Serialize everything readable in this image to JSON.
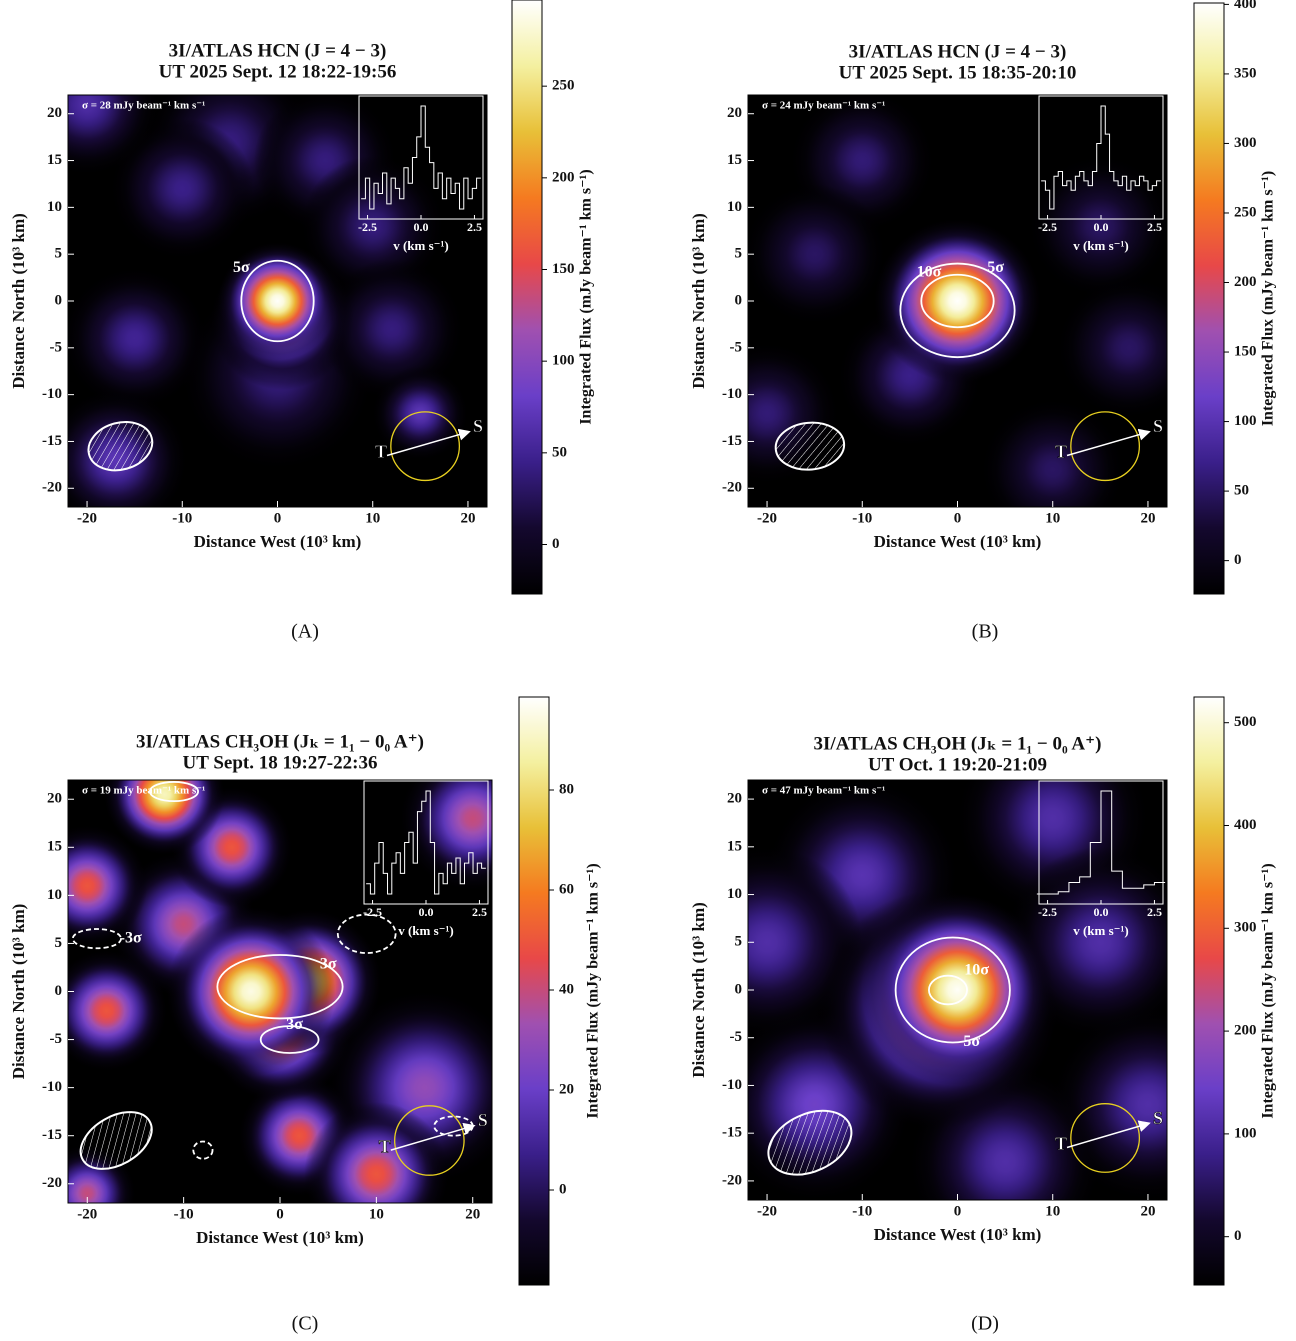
{
  "chart_data": [
    {
      "type": "heatmap",
      "caption": "(A)",
      "title": "3I/ATLAS HCN (J = 4 − 3)",
      "subtitle": "UT 2025 Sept. 12 18:22-19:56",
      "xlabel": "Distance West (10³ km)",
      "ylabel": "Distance North (10³ km)",
      "colorbar_label": "Integrated Flux (mJy beam⁻¹ km s⁻¹)",
      "noise_label": "σ = 28 mJy beam⁻¹ km s⁻¹",
      "xlim": [
        -22,
        22
      ],
      "ylim": [
        -22,
        22
      ],
      "xticks": [
        -20,
        -10,
        0,
        10,
        20
      ],
      "yticks": [
        -20,
        -15,
        -10,
        -5,
        0,
        5,
        10,
        15,
        20
      ],
      "clim": [
        -27,
        297
      ],
      "cticks": [
        0,
        50,
        100,
        150,
        200,
        250
      ],
      "colormap": [
        "#000000",
        "#14082e",
        "#3a1f8a",
        "#6a3fc8",
        "#a050b0",
        "#e84848",
        "#f57a20",
        "#e8c038",
        "#f4f0a0",
        "#ffffff"
      ],
      "sources": [
        {
          "x": -5,
          "y": 17,
          "value": 40,
          "size": 3.5
        },
        {
          "x": 5,
          "y": 15,
          "value": 40,
          "size": 3
        },
        {
          "x": -10,
          "y": 12,
          "value": 45,
          "size": 3
        },
        {
          "x": 10,
          "y": 8,
          "value": 40,
          "size": 3
        },
        {
          "x": -15,
          "y": -4,
          "value": 50,
          "size": 3
        },
        {
          "x": 0,
          "y": -8,
          "value": 40,
          "size": 4
        },
        {
          "x": 12,
          "y": -3,
          "value": 40,
          "size": 3
        },
        {
          "x": -20,
          "y": 21,
          "value": 60,
          "size": 3
        },
        {
          "x": 15,
          "y": -12,
          "value": 70,
          "size": 2
        },
        {
          "x": -17,
          "y": -17,
          "value": 70,
          "size": 3
        },
        {
          "x": 0.5,
          "y": -2,
          "value": 150,
          "size": 3
        },
        {
          "x": 0,
          "y": 0,
          "value": 295,
          "size": 2.5
        }
      ],
      "contours": [
        {
          "label": "5σ",
          "center": [
            0,
            0
          ],
          "radii": [
            3.8,
            4.3
          ],
          "label_at": [
            -3.8,
            3.5
          ]
        }
      ],
      "beam": {
        "center": [
          -16.5,
          -15.5
        ],
        "radii": [
          3.4,
          2.5
        ],
        "angle": -15
      },
      "circle": {
        "center": [
          15.5,
          -15.5
        ],
        "radius": 3.6,
        "color": "#e8d020"
      },
      "arrow": {
        "start": [
          11.5,
          -16.5
        ],
        "end": [
          20,
          -14
        ],
        "start_label": "T",
        "end_label": "S"
      },
      "inset": {
        "xlabel": "v (km s⁻¹)",
        "xlim": [
          -2.9,
          2.9
        ],
        "xticks": [
          -2.5,
          {
            "value": 0,
            "label": "0.0"
          },
          2.5
        ],
        "x": [
          -2.7,
          -2.5,
          -2.3,
          -2.1,
          -1.9,
          -1.7,
          -1.5,
          -1.3,
          -1.1,
          -0.9,
          -0.7,
          -0.5,
          -0.3,
          -0.1,
          0.1,
          0.3,
          0.5,
          0.7,
          0.9,
          1.1,
          1.3,
          1.5,
          1.7,
          1.9,
          2.1,
          2.3,
          2.5,
          2.7
        ],
        "values": [
          0.1,
          0.3,
          0.0,
          0.25,
          0.15,
          0.35,
          0.05,
          0.3,
          0.2,
          0.1,
          0.4,
          0.25,
          0.5,
          0.7,
          1.0,
          0.6,
          0.45,
          0.2,
          0.35,
          0.1,
          0.3,
          0.15,
          0.25,
          0.0,
          0.3,
          0.1,
          0.2,
          0.3
        ]
      }
    },
    {
      "type": "heatmap",
      "caption": "(B)",
      "title": "3I/ATLAS HCN (J = 4 − 3)",
      "subtitle": "UT 2025 Sept. 15 18:35-20:10",
      "xlabel": "Distance West (10³ km)",
      "ylabel": "Distance North (10³ km)",
      "colorbar_label": "Integrated Flux (mJy beam⁻¹ km s⁻¹)",
      "noise_label": "σ = 24 mJy beam⁻¹ km s⁻¹",
      "xlim": [
        -22,
        22
      ],
      "ylim": [
        -22,
        22
      ],
      "xticks": [
        -20,
        -10,
        0,
        10,
        20
      ],
      "yticks": [
        -20,
        -15,
        -10,
        -5,
        0,
        5,
        10,
        15,
        20
      ],
      "clim": [
        -24,
        401
      ],
      "cticks": [
        0,
        50,
        100,
        150,
        200,
        250,
        300,
        350,
        400
      ],
      "colormap": [
        "#000000",
        "#14082e",
        "#3a1f8a",
        "#6a3fc8",
        "#a050b0",
        "#e84848",
        "#f57a20",
        "#e8c038",
        "#f4f0a0",
        "#ffffff"
      ],
      "sources": [
        {
          "x": -10,
          "y": 15,
          "value": 60,
          "size": 3
        },
        {
          "x": -20,
          "y": -12,
          "value": 60,
          "size": 3
        },
        {
          "x": 10,
          "y": -18,
          "value": 50,
          "size": 3
        },
        {
          "x": 15,
          "y": 8,
          "value": 50,
          "size": 3
        },
        {
          "x": -15,
          "y": 5,
          "value": 50,
          "size": 3
        },
        {
          "x": 18,
          "y": -5,
          "value": 50,
          "size": 3
        },
        {
          "x": -5,
          "y": -8,
          "value": 70,
          "size": 3
        },
        {
          "x": 0,
          "y": 0,
          "value": 400,
          "size": 3.5
        }
      ],
      "contours": [
        {
          "label": "5σ",
          "center": [
            0,
            -1
          ],
          "radii": [
            6,
            5
          ],
          "label_at": [
            4,
            3.5
          ]
        },
        {
          "label": "10σ",
          "center": [
            0,
            0
          ],
          "radii": [
            3.8,
            2.8
          ],
          "label_at": [
            -3,
            3
          ]
        }
      ],
      "beam": {
        "center": [
          -15.5,
          -15.5
        ],
        "radii": [
          3.6,
          2.5
        ],
        "angle": -5
      },
      "circle": {
        "center": [
          15.5,
          -15.5
        ],
        "radius": 3.6,
        "color": "#e8d020"
      },
      "arrow": {
        "start": [
          11.5,
          -16.5
        ],
        "end": [
          20,
          -14
        ],
        "start_label": "T",
        "end_label": "S"
      },
      "inset": {
        "xlabel": "v (km s⁻¹)",
        "xlim": [
          -2.9,
          2.9
        ],
        "xticks": [
          -2.5,
          {
            "value": 0,
            "label": "0.0"
          },
          2.5
        ],
        "x": [
          -2.7,
          -2.5,
          -2.3,
          -2.1,
          -1.9,
          -1.7,
          -1.5,
          -1.3,
          -1.1,
          -0.9,
          -0.7,
          -0.5,
          -0.3,
          -0.1,
          0.1,
          0.3,
          0.5,
          0.7,
          0.9,
          1.1,
          1.3,
          1.5,
          1.7,
          1.9,
          2.1,
          2.3,
          2.5,
          2.7
        ],
        "values": [
          0.2,
          0.1,
          -0.1,
          0.25,
          0.3,
          0.15,
          0.2,
          0.1,
          0.25,
          0.3,
          0.2,
          0.15,
          0.3,
          0.6,
          1.0,
          0.7,
          0.3,
          0.2,
          0.15,
          0.25,
          0.1,
          0.2,
          0.15,
          0.25,
          0.2,
          0.1,
          0.15,
          0.2
        ]
      }
    },
    {
      "type": "heatmap",
      "caption": "(C)",
      "title": "3I/ATLAS CH₃OH (Jₖ = 1₁ − 0₀ A⁺)",
      "subtitle": "UT Sept. 18 19:27-22:36",
      "xlabel": "Distance West (10³ km)",
      "ylabel": "Distance North (10³ km)",
      "colorbar_label": "Integrated Flux (mJy beam⁻¹ km s⁻¹)",
      "noise_label": "σ = 19 mJy beam⁻¹ km s⁻¹",
      "xlim": [
        -22,
        22
      ],
      "ylim": [
        -22,
        22
      ],
      "xticks": [
        -20,
        -10,
        0,
        10,
        20
      ],
      "yticks": [
        -20,
        -15,
        -10,
        -5,
        0,
        5,
        10,
        15,
        20
      ],
      "clim": [
        -19,
        98.6
      ],
      "cticks": [
        0,
        20,
        40,
        60,
        80
      ],
      "colormap": [
        "#000000",
        "#14082e",
        "#3a1f8a",
        "#6a3fc8",
        "#a050b0",
        "#e84848",
        "#f57a20",
        "#e8c038",
        "#f4f0a0",
        "#ffffff"
      ],
      "sources": [
        {
          "x": 15,
          "y": -10,
          "value": 30,
          "size": 4
        },
        {
          "x": -10,
          "y": 7,
          "value": 40,
          "size": 3
        },
        {
          "x": 20,
          "y": 18,
          "value": 40,
          "size": 3
        },
        {
          "x": -20,
          "y": -21,
          "value": 40,
          "size": 2
        },
        {
          "x": -20,
          "y": 11,
          "value": 50,
          "size": 2.5
        },
        {
          "x": -5,
          "y": 15,
          "value": 50,
          "size": 2.5
        },
        {
          "x": -18,
          "y": -2,
          "value": 50,
          "size": 2.5
        },
        {
          "x": 2,
          "y": -15,
          "value": 50,
          "size": 2.5
        },
        {
          "x": 10,
          "y": -19,
          "value": 50,
          "size": 3
        },
        {
          "x": 0,
          "y": -4,
          "value": 60,
          "size": 3
        },
        {
          "x": -12,
          "y": 20.5,
          "value": 90,
          "size": 2.5
        },
        {
          "x": 3,
          "y": 1,
          "value": 80,
          "size": 3
        },
        {
          "x": -3,
          "y": 0,
          "value": 95,
          "size": 3.5
        }
      ],
      "contours": [
        {
          "label": "3σ",
          "center": [
            0,
            0.5
          ],
          "radii": [
            6.5,
            3.3
          ],
          "label_at": [
            5,
            2.8
          ]
        },
        {
          "label": "3σ",
          "center": [
            1,
            -5
          ],
          "radii": [
            3,
            1.4
          ],
          "label_at": [
            1.5,
            -3.5
          ]
        },
        {
          "center": [
            -11,
            20.8
          ],
          "radii": [
            2.5,
            1
          ]
        },
        {
          "label": "-3σ",
          "center": [
            -19,
            5.5
          ],
          "radii": [
            2.5,
            1
          ],
          "label_at": [
            -15.5,
            5.5
          ],
          "dashed": true
        },
        {
          "center": [
            9,
            6
          ],
          "radii": [
            3,
            2
          ],
          "dashed": true
        },
        {
          "center": [
            -8,
            -16.5
          ],
          "radii": [
            1,
            0.9
          ],
          "dashed": true
        },
        {
          "center": [
            18,
            -14
          ],
          "radii": [
            2,
            1
          ],
          "dashed": true
        }
      ],
      "beam": {
        "center": [
          -17,
          -15.5
        ],
        "radii": [
          4,
          2.5
        ],
        "angle": -30
      },
      "circle": {
        "center": [
          15.5,
          -15.5
        ],
        "radius": 3.6,
        "color": "#e8d020"
      },
      "arrow": {
        "start": [
          11.5,
          -16.5
        ],
        "end": [
          20,
          -14
        ],
        "start_label": "T",
        "end_label": "S"
      },
      "inset": {
        "xlabel": "v (km s⁻¹)",
        "xlim": [
          -2.9,
          2.9
        ],
        "xticks": [
          -2.5,
          {
            "value": 0,
            "label": "0.0"
          },
          2.5
        ],
        "x": [
          -2.7,
          -2.5,
          -2.3,
          -2.1,
          -1.9,
          -1.7,
          -1.5,
          -1.3,
          -1.1,
          -0.9,
          -0.7,
          -0.5,
          -0.3,
          -0.1,
          0.1,
          0.3,
          0.5,
          0.7,
          0.9,
          1.1,
          1.3,
          1.5,
          1.7,
          1.9,
          2.1,
          2.3,
          2.5,
          2.7
        ],
        "values": [
          0.1,
          0.0,
          0.3,
          0.5,
          0.2,
          0.0,
          0.3,
          0.4,
          0.2,
          0.5,
          0.6,
          0.3,
          0.8,
          0.9,
          1.0,
          0.5,
          0.0,
          0.2,
          0.1,
          0.3,
          0.2,
          0.35,
          0.1,
          0.3,
          0.4,
          0.2,
          0.3,
          0.25
        ]
      }
    },
    {
      "type": "heatmap",
      "caption": "(D)",
      "title": "3I/ATLAS CH₃OH (Jₖ = 1₁ − 0₀ A⁺)",
      "subtitle": "UT Oct. 1 19:20-21:09",
      "xlabel": "Distance West (10³ km)",
      "ylabel": "Distance North (10³ km)",
      "colorbar_label": "Integrated Flux (mJy beam⁻¹ km s⁻¹)",
      "noise_label": "σ = 47 mJy beam⁻¹ km s⁻¹",
      "xlim": [
        -22,
        22
      ],
      "ylim": [
        -22,
        22
      ],
      "xticks": [
        -20,
        -10,
        0,
        10,
        20
      ],
      "yticks": [
        -20,
        -15,
        -10,
        -5,
        0,
        5,
        10,
        15,
        20
      ],
      "clim": [
        -47,
        525
      ],
      "cticks": [
        0,
        100,
        200,
        300,
        400,
        500
      ],
      "colormap": [
        "#000000",
        "#14082e",
        "#3a1f8a",
        "#6a3fc8",
        "#a050b0",
        "#e84848",
        "#f57a20",
        "#e8c038",
        "#f4f0a0",
        "#ffffff"
      ],
      "sources": [
        {
          "x": -15,
          "y": -12,
          "value": 150,
          "size": 4
        },
        {
          "x": 20,
          "y": -12,
          "value": 110,
          "size": 4
        },
        {
          "x": -10,
          "y": 12,
          "value": 120,
          "size": 4
        },
        {
          "x": 10,
          "y": 18,
          "value": 110,
          "size": 4
        },
        {
          "x": 15,
          "y": 5,
          "value": 110,
          "size": 4
        },
        {
          "x": -20,
          "y": 5,
          "value": 110,
          "size": 4
        },
        {
          "x": 5,
          "y": -18,
          "value": 110,
          "size": 4
        },
        {
          "x": -2,
          "y": -2,
          "value": 300,
          "size": 5
        },
        {
          "x": 0,
          "y": 0,
          "value": 520,
          "size": 4
        }
      ],
      "contours": [
        {
          "label": "5σ",
          "center": [
            -0.5,
            0
          ],
          "radii": [
            6,
            5.5
          ],
          "label_at": [
            1.5,
            -5.5
          ]
        },
        {
          "label": "10σ",
          "center": [
            -1,
            0
          ],
          "radii": [
            2,
            1.5
          ],
          "label_at": [
            2,
            2
          ]
        }
      ],
      "beam": {
        "center": [
          -15.5,
          -16
        ],
        "radii": [
          4.6,
          3
        ],
        "angle": -25
      },
      "circle": {
        "center": [
          15.5,
          -15.5
        ],
        "radius": 3.6,
        "color": "#e8d020"
      },
      "arrow": {
        "start": [
          11.5,
          -16.5
        ],
        "end": [
          20,
          -14
        ],
        "start_label": "T",
        "end_label": "S"
      },
      "inset": {
        "xlabel": "v (km s⁻¹)",
        "xlim": [
          -2.9,
          2.9
        ],
        "xticks": [
          -2.5,
          {
            "value": 0,
            "label": "0.0"
          },
          2.5
        ],
        "x": [
          -2.75,
          -2.25,
          -1.75,
          -1.25,
          -0.75,
          -0.25,
          0.25,
          0.75,
          1.25,
          1.75,
          2.25,
          2.75
        ],
        "values": [
          0.1,
          0.1,
          0.12,
          0.2,
          0.25,
          0.55,
          1.0,
          0.3,
          0.15,
          0.15,
          0.18,
          0.2
        ]
      }
    }
  ]
}
